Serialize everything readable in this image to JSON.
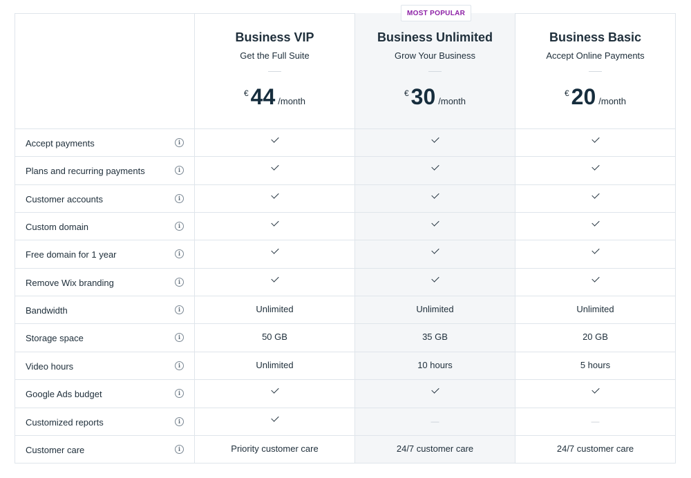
{
  "badge": "MOST POPULAR",
  "plans": [
    {
      "name": "Business VIP",
      "tagline": "Get the Full Suite",
      "currency": "€",
      "price": "44",
      "period": "/month"
    },
    {
      "name": "Business Unlimited",
      "tagline": "Grow Your Business",
      "currency": "€",
      "price": "30",
      "period": "/month"
    },
    {
      "name": "Business Basic",
      "tagline": "Accept Online Payments",
      "currency": "€",
      "price": "20",
      "period": "/month"
    }
  ],
  "features": [
    {
      "label": "Accept payments",
      "values": [
        "check",
        "check",
        "check"
      ]
    },
    {
      "label": "Plans and recurring payments",
      "values": [
        "check",
        "check",
        "check"
      ]
    },
    {
      "label": "Customer accounts",
      "values": [
        "check",
        "check",
        "check"
      ]
    },
    {
      "label": "Custom domain",
      "values": [
        "check",
        "check",
        "check"
      ]
    },
    {
      "label": "Free domain for 1 year",
      "values": [
        "check",
        "check",
        "check"
      ]
    },
    {
      "label": "Remove Wix branding",
      "values": [
        "check",
        "check",
        "check"
      ]
    },
    {
      "label": "Bandwidth",
      "values": [
        "Unlimited",
        "Unlimited",
        "Unlimited"
      ]
    },
    {
      "label": "Storage space",
      "values": [
        "50 GB",
        "35 GB",
        "20 GB"
      ]
    },
    {
      "label": "Video hours",
      "values": [
        "Unlimited",
        "10 hours",
        "5 hours"
      ]
    },
    {
      "label": "Google Ads budget",
      "values": [
        "check",
        "check",
        "check"
      ]
    },
    {
      "label": "Customized reports",
      "values": [
        "check",
        "—",
        "—"
      ]
    },
    {
      "label": "Customer care",
      "values": [
        "Priority customer care",
        "24/7 customer care",
        "24/7 customer care"
      ]
    }
  ],
  "info_icon_glyph": "i",
  "colors": {
    "accent": "#8e21a6",
    "highlight": "#f4f6f8",
    "border": "#dfe5eb",
    "text": "#20303c"
  }
}
